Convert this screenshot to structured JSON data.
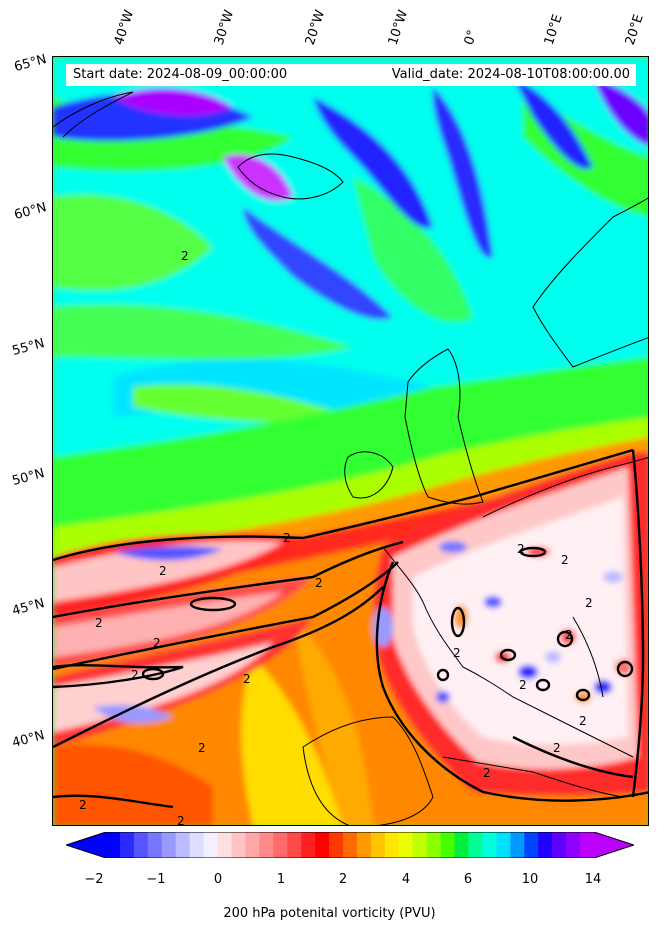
{
  "header": {
    "start_date": "Start date: 2024-08-09_00:00:00",
    "valid_date": "Valid_date: 2024-08-10T08:00:00.00"
  },
  "longitude_labels": [
    "40°W",
    "30°W",
    "20°W",
    "10°W",
    "0°",
    "10°E",
    "20°E"
  ],
  "latitude_labels": [
    "65°N",
    "60°N",
    "55°N",
    "50°N",
    "45°N",
    "40°N"
  ],
  "contour_value_label": "2",
  "colorbar": {
    "label": "200 hPa potenital vorticity (PVU)",
    "ticks": [
      "−2",
      "−1",
      "0",
      "1",
      "2",
      "4",
      "6",
      "10",
      "14"
    ],
    "colors": [
      "#0000ff",
      "#2a2aff",
      "#5555ff",
      "#7777ff",
      "#9999ff",
      "#bbbbff",
      "#ddddff",
      "#f4f0ff",
      "#ffe0e0",
      "#ffc4c4",
      "#ffa8a8",
      "#ff8a8a",
      "#ff6a6a",
      "#ff4a4a",
      "#ff2020",
      "#ff0000",
      "#ff3a00",
      "#ff6a00",
      "#ff9a00",
      "#ffc400",
      "#ffe800",
      "#eaff00",
      "#bfff00",
      "#8cff00",
      "#44ff00",
      "#00f040",
      "#00ff99",
      "#00ffdd",
      "#00e0ff",
      "#0099ff",
      "#0044ff",
      "#2000ff",
      "#6000ff",
      "#9000ff",
      "#bb00ff"
    ],
    "extend_low_color": "#0000ff",
    "extend_high_color": "#bb00ff"
  },
  "field_colors": {
    "cyan": "#00ffee",
    "green": "#33ff33",
    "lime": "#aaff00",
    "yellow": "#ffff00",
    "orange": "#ff9900",
    "red": "#ff2a1a",
    "pink": "#ffb0b0",
    "blue": "#2222ff",
    "purple": "#aa00ff"
  }
}
